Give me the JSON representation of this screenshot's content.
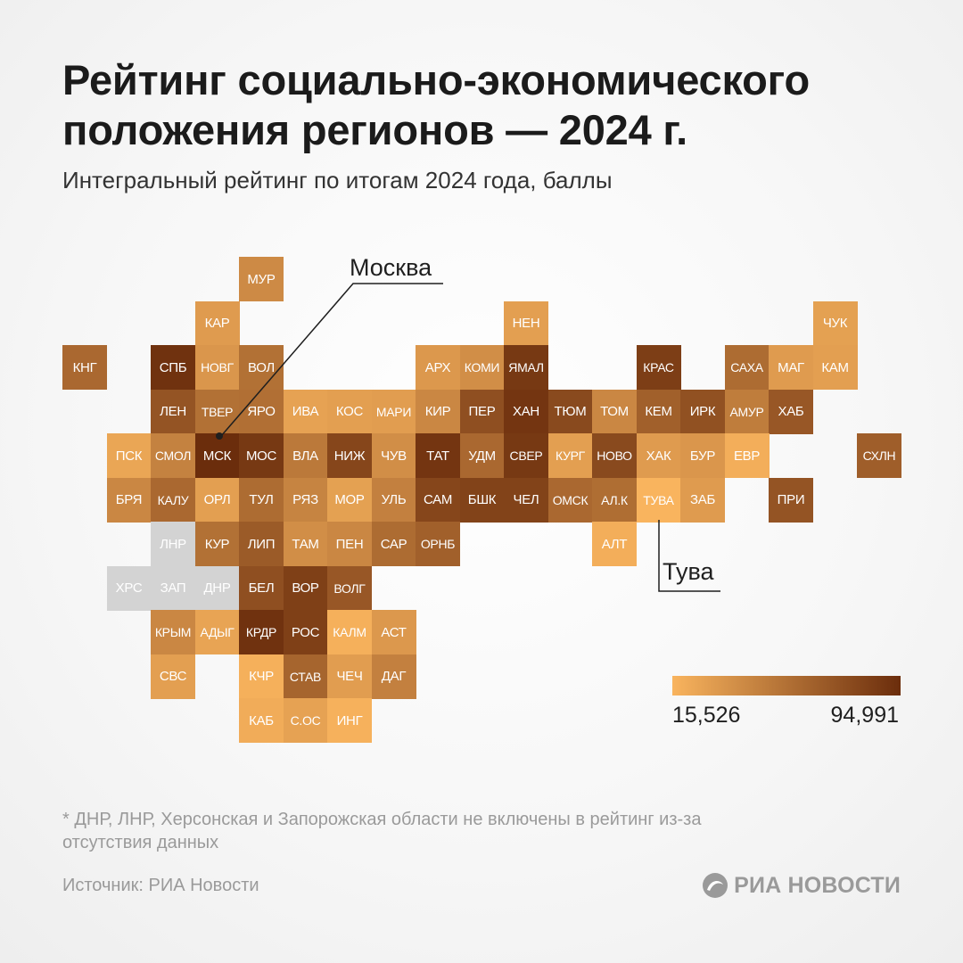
{
  "title": "Рейтинг социально-экономического положения регионов — 2024 г.",
  "subtitle": "Интегральный рейтинг по итогам 2024 года, баллы",
  "chart_data": {
    "type": "heatmap",
    "title": "Рейтинг социально-экономического положения регионов — 2024 г.",
    "subtitle": "Интегральный рейтинг по итогам 2024 года, баллы",
    "scale": {
      "min": 15.526,
      "max": 94.991,
      "min_label": "15,526",
      "max_label": "94,991",
      "low_color": "#f9b45e",
      "high_color": "#6b2d0c"
    },
    "no_data_color": "#d3d3d3",
    "grid_origin_note": "col/row are tile-grid indices of the schematic map",
    "regions": [
      {
        "code": "МУР",
        "col": 4,
        "row": 0,
        "value": 40
      },
      {
        "code": "КАР",
        "col": 3,
        "row": 1,
        "value": 30
      },
      {
        "code": "НЕН",
        "col": 10,
        "row": 1,
        "value": 28
      },
      {
        "code": "ЧУК",
        "col": 17,
        "row": 1,
        "value": 27
      },
      {
        "code": "КНГ",
        "col": 0,
        "row": 2,
        "value": 60
      },
      {
        "code": "СПБ",
        "col": 2,
        "row": 2,
        "value": 92
      },
      {
        "code": "НОВГ",
        "col": 3,
        "row": 2,
        "value": 33
      },
      {
        "code": "ВОЛ",
        "col": 4,
        "row": 2,
        "value": 55
      },
      {
        "code": "АРХ",
        "col": 8,
        "row": 2,
        "value": 32
      },
      {
        "code": "КОМИ",
        "col": 9,
        "row": 2,
        "value": 38
      },
      {
        "code": "ЯМАЛ",
        "col": 10,
        "row": 2,
        "value": 88
      },
      {
        "code": "КРАС",
        "col": 13,
        "row": 2,
        "value": 85
      },
      {
        "code": "САХА",
        "col": 15,
        "row": 2,
        "value": 58
      },
      {
        "code": "МАГ",
        "col": 16,
        "row": 2,
        "value": 30
      },
      {
        "code": "КАМ",
        "col": 17,
        "row": 2,
        "value": 28
      },
      {
        "code": "ЛЕН",
        "col": 2,
        "row": 3,
        "value": 72
      },
      {
        "code": "ТВЕР",
        "col": 3,
        "row": 3,
        "value": 55
      },
      {
        "code": "ЯРО",
        "col": 4,
        "row": 3,
        "value": 56
      },
      {
        "code": "ИВА",
        "col": 5,
        "row": 3,
        "value": 26
      },
      {
        "code": "КОС",
        "col": 6,
        "row": 3,
        "value": 28
      },
      {
        "code": "МАРИ",
        "col": 7,
        "row": 3,
        "value": 29
      },
      {
        "code": "КИР",
        "col": 8,
        "row": 3,
        "value": 42
      },
      {
        "code": "ПЕР",
        "col": 9,
        "row": 3,
        "value": 75
      },
      {
        "code": "ХАН",
        "col": 10,
        "row": 3,
        "value": 90
      },
      {
        "code": "ТЮМ",
        "col": 11,
        "row": 3,
        "value": 78
      },
      {
        "code": "ТОМ",
        "col": 12,
        "row": 3,
        "value": 42
      },
      {
        "code": "КЕМ",
        "col": 13,
        "row": 3,
        "value": 65
      },
      {
        "code": "ИРК",
        "col": 14,
        "row": 3,
        "value": 74
      },
      {
        "code": "АМУР",
        "col": 15,
        "row": 3,
        "value": 48
      },
      {
        "code": "ХАБ",
        "col": 16,
        "row": 3,
        "value": 70
      },
      {
        "code": "ПСК",
        "col": 1,
        "row": 4,
        "value": 24
      },
      {
        "code": "СМОЛ",
        "col": 2,
        "row": 4,
        "value": 45
      },
      {
        "code": "МСК",
        "col": 3,
        "row": 4,
        "value": 94.991
      },
      {
        "code": "МОС",
        "col": 4,
        "row": 4,
        "value": 88
      },
      {
        "code": "ВЛА",
        "col": 5,
        "row": 4,
        "value": 50
      },
      {
        "code": "НИЖ",
        "col": 6,
        "row": 4,
        "value": 80
      },
      {
        "code": "ЧУВ",
        "col": 7,
        "row": 4,
        "value": 38
      },
      {
        "code": "ТАТ",
        "col": 8,
        "row": 4,
        "value": 90
      },
      {
        "code": "УДМ",
        "col": 9,
        "row": 4,
        "value": 60
      },
      {
        "code": "СВЕР",
        "col": 10,
        "row": 4,
        "value": 88
      },
      {
        "code": "КУРГ",
        "col": 11,
        "row": 4,
        "value": 28
      },
      {
        "code": "НОВО",
        "col": 12,
        "row": 4,
        "value": 78
      },
      {
        "code": "ХАК",
        "col": 13,
        "row": 4,
        "value": 30
      },
      {
        "code": "БУР",
        "col": 14,
        "row": 4,
        "value": 33
      },
      {
        "code": "ЕВР",
        "col": 15,
        "row": 4,
        "value": 19
      },
      {
        "code": "СХЛН",
        "col": 18,
        "row": 4,
        "value": 66
      },
      {
        "code": "БРЯ",
        "col": 1,
        "row": 5,
        "value": 42
      },
      {
        "code": "КАЛУ",
        "col": 2,
        "row": 5,
        "value": 60
      },
      {
        "code": "ОРЛ",
        "col": 3,
        "row": 5,
        "value": 28
      },
      {
        "code": "ТУЛ",
        "col": 4,
        "row": 5,
        "value": 58
      },
      {
        "code": "РЯЗ",
        "col": 5,
        "row": 5,
        "value": 44
      },
      {
        "code": "МОР",
        "col": 6,
        "row": 5,
        "value": 27
      },
      {
        "code": "УЛЬ",
        "col": 7,
        "row": 5,
        "value": 46
      },
      {
        "code": "САМ",
        "col": 8,
        "row": 5,
        "value": 80
      },
      {
        "code": "БШК",
        "col": 9,
        "row": 5,
        "value": 82
      },
      {
        "code": "ЧЕЛ",
        "col": 10,
        "row": 5,
        "value": 82
      },
      {
        "code": "ОМСК",
        "col": 11,
        "row": 5,
        "value": 60
      },
      {
        "code": "АЛ.К",
        "col": 12,
        "row": 5,
        "value": 57
      },
      {
        "code": "ТУВА",
        "col": 13,
        "row": 5,
        "value": 15.526
      },
      {
        "code": "ЗАБ",
        "col": 14,
        "row": 5,
        "value": 30
      },
      {
        "code": "ПРИ",
        "col": 16,
        "row": 5,
        "value": 72
      },
      {
        "code": "ЛНР",
        "col": 2,
        "row": 6,
        "value": null
      },
      {
        "code": "КУР",
        "col": 3,
        "row": 6,
        "value": 55
      },
      {
        "code": "ЛИП",
        "col": 4,
        "row": 6,
        "value": 68
      },
      {
        "code": "ТАМ",
        "col": 5,
        "row": 6,
        "value": 38
      },
      {
        "code": "ПЕН",
        "col": 6,
        "row": 6,
        "value": 42
      },
      {
        "code": "САР",
        "col": 7,
        "row": 6,
        "value": 58
      },
      {
        "code": "ОРНБ",
        "col": 8,
        "row": 6,
        "value": 65
      },
      {
        "code": "АЛТ",
        "col": 12,
        "row": 6,
        "value": 19
      },
      {
        "code": "ХРС",
        "col": 1,
        "row": 7,
        "value": null
      },
      {
        "code": "ЗАП",
        "col": 2,
        "row": 7,
        "value": null
      },
      {
        "code": "ДНР",
        "col": 3,
        "row": 7,
        "value": null
      },
      {
        "code": "БЕЛ",
        "col": 4,
        "row": 7,
        "value": 75
      },
      {
        "code": "ВОР",
        "col": 5,
        "row": 7,
        "value": 84
      },
      {
        "code": "ВОЛГ",
        "col": 6,
        "row": 7,
        "value": 70
      },
      {
        "code": "КРЫМ",
        "col": 2,
        "row": 8,
        "value": 42
      },
      {
        "code": "АДЫГ",
        "col": 3,
        "row": 8,
        "value": 25
      },
      {
        "code": "КРДР",
        "col": 4,
        "row": 8,
        "value": 92
      },
      {
        "code": "РОС",
        "col": 5,
        "row": 8,
        "value": 84
      },
      {
        "code": "КАЛМ",
        "col": 6,
        "row": 8,
        "value": 18
      },
      {
        "code": "АСТ",
        "col": 7,
        "row": 8,
        "value": 32
      },
      {
        "code": "СВС",
        "col": 2,
        "row": 9,
        "value": 28
      },
      {
        "code": "КЧР",
        "col": 4,
        "row": 9,
        "value": 18
      },
      {
        "code": "СТАВ",
        "col": 5,
        "row": 9,
        "value": 62
      },
      {
        "code": "ЧЕЧ",
        "col": 6,
        "row": 9,
        "value": 29
      },
      {
        "code": "ДАГ",
        "col": 7,
        "row": 9,
        "value": 46
      },
      {
        "code": "КАБ",
        "col": 4,
        "row": 10,
        "value": 20
      },
      {
        "code": "С.ОС",
        "col": 5,
        "row": 10,
        "value": 26
      },
      {
        "code": "ИНГ",
        "col": 6,
        "row": 10,
        "value": 17
      }
    ],
    "annotations": [
      {
        "text": "Москва",
        "target": "МСК"
      },
      {
        "text": "Тува",
        "target": "ТУВА"
      }
    ]
  },
  "legend": {
    "min_label": "15,526",
    "max_label": "94,991"
  },
  "annotations": {
    "moscow": "Москва",
    "tuva": "Тува"
  },
  "footnote": "* ДНР, ЛНР, Херсонская и Запорожская области не включены в рейтинг из-за отсутствия данных",
  "source": "Источник: РИА Новости",
  "logo": {
    "text": "РИА НОВОСТИ",
    "icon": "ria-logo-icon"
  }
}
